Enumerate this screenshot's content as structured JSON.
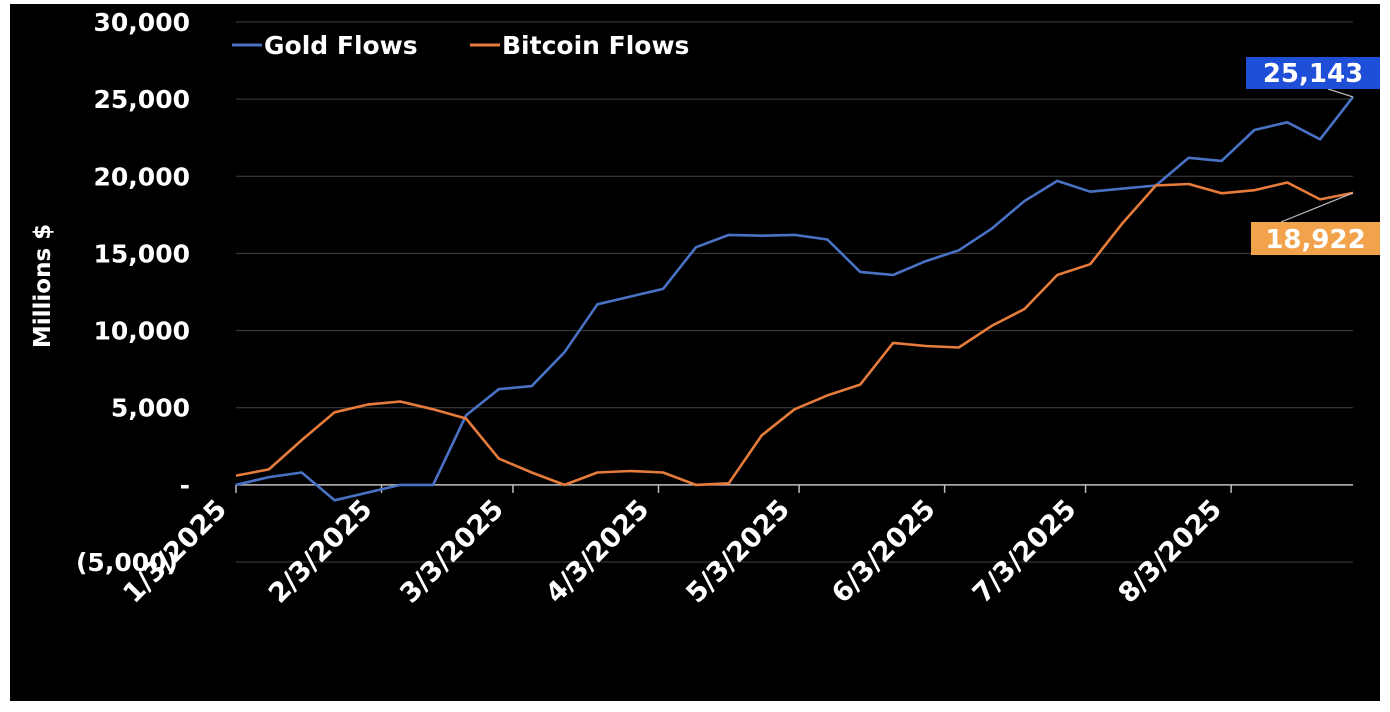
{
  "chart_data": {
    "type": "line",
    "title": "",
    "xlabel": "",
    "ylabel": "Millions $",
    "ylim": [
      -5000,
      30000
    ],
    "yticks": [
      {
        "value": 30000,
        "label": "30,000"
      },
      {
        "value": 25000,
        "label": "25,000"
      },
      {
        "value": 20000,
        "label": "20,000"
      },
      {
        "value": 15000,
        "label": "15,000"
      },
      {
        "value": 10000,
        "label": "10,000"
      },
      {
        "value": 5000,
        "label": "5,000"
      },
      {
        "value": 0,
        "label": "-"
      },
      {
        "value": -5000,
        "label": "(5,000)"
      }
    ],
    "xticks": [
      {
        "index": 0,
        "label": "1/3/2025"
      },
      {
        "index": 4.43,
        "label": "2/3/2025"
      },
      {
        "index": 8.43,
        "label": "3/3/2025"
      },
      {
        "index": 12.86,
        "label": "4/3/2025"
      },
      {
        "index": 17.14,
        "label": "5/3/2025"
      },
      {
        "index": 21.57,
        "label": "6/3/2025"
      },
      {
        "index": 25.86,
        "label": "7/3/2025"
      },
      {
        "index": 30.29,
        "label": "8/3/2025"
      }
    ],
    "x_count": 35,
    "grid": true,
    "legend_position": "top-left",
    "series": [
      {
        "name": "Gold Flows",
        "color": "#4a72c4",
        "values": [
          0,
          500,
          800,
          -1000,
          -500,
          0,
          0,
          4500,
          6200,
          6400,
          8600,
          11700,
          12200,
          12700,
          15400,
          16200,
          16150,
          16200,
          15900,
          13800,
          13600,
          14500,
          15200,
          16600,
          18400,
          19700,
          19000,
          19200,
          19400,
          21200,
          21000,
          23000,
          23500,
          22400,
          25143
        ]
      },
      {
        "name": "Bitcoin Flows",
        "color": "#e67c3b",
        "values": [
          600,
          1000,
          2900,
          4700,
          5200,
          5400,
          4900,
          4300,
          1700,
          800,
          0,
          800,
          900,
          800,
          0,
          100,
          3200,
          4900,
          5800,
          6500,
          9200,
          9000,
          8900,
          10300,
          11400,
          13600,
          14300,
          17000,
          19400,
          19500,
          18900,
          19100,
          19600,
          18500,
          18922
        ]
      }
    ],
    "callouts": [
      {
        "series": "Gold Flows",
        "label": "25,143",
        "color": "#1f4fd6"
      },
      {
        "series": "Bitcoin Flows",
        "label": "18,922",
        "color": "#f2a24a"
      }
    ]
  }
}
